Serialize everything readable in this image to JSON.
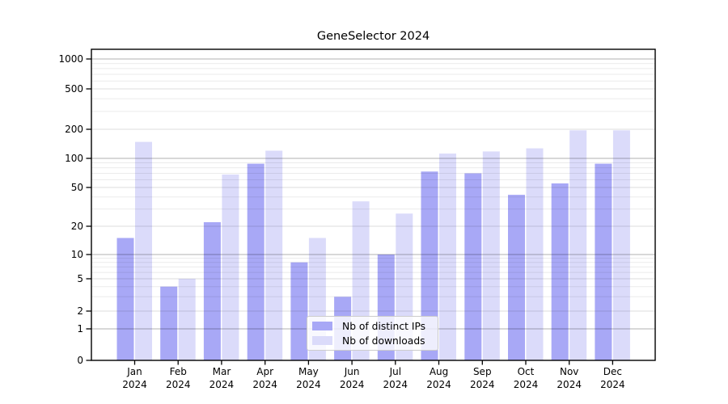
{
  "title": "GeneSelector 2024",
  "chart_data": {
    "type": "bar",
    "title": "GeneSelector 2024",
    "categories": [
      "Jan",
      "Feb",
      "Mar",
      "Apr",
      "May",
      "Jun",
      "Jul",
      "Aug",
      "Sep",
      "Oct",
      "Nov",
      "Dec"
    ],
    "x_year": "2024",
    "series": [
      {
        "name": "Nb of distinct IPs",
        "color": "#a8a8f6",
        "values": [
          15,
          4,
          22,
          88,
          8,
          3,
          10,
          73,
          70,
          42,
          55,
          88
        ]
      },
      {
        "name": "Nb of downloads",
        "color": "#dbdbfa",
        "values": [
          148,
          5,
          68,
          120,
          15,
          36,
          27,
          112,
          118,
          127,
          195,
          195
        ]
      }
    ],
    "y_scale": "symlog",
    "y_ticks": [
      0,
      1,
      2,
      5,
      10,
      20,
      50,
      100,
      200,
      500,
      1000
    ],
    "y_major_gridlines": [
      1,
      10,
      100,
      1000
    ],
    "y_minor_gridlines": [
      2,
      3,
      4,
      5,
      6,
      7,
      8,
      9,
      20,
      30,
      40,
      50,
      60,
      70,
      80,
      90,
      200,
      300,
      400,
      500,
      600,
      700,
      800,
      900
    ],
    "ylim": [
      0,
      1250
    ],
    "xlabel": "",
    "ylabel": "",
    "grid": true,
    "legend_position": "lower center"
  },
  "colors": {
    "background": "#ffffff",
    "axis": "#000000",
    "major_grid": "#b3b3b3",
    "minor_grid": "#ebebeb",
    "bar_distinct_ips": "#a8a8f6",
    "bar_downloads": "#dbdbfa"
  }
}
